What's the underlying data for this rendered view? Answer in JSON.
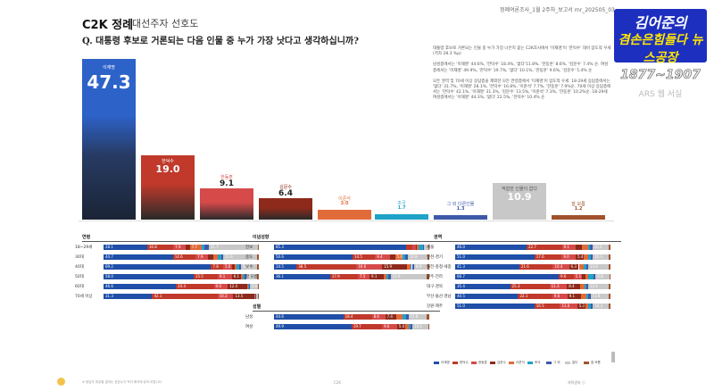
{
  "header": {
    "brand": "C2K 정례",
    "subtitle": "대선주자 선호도",
    "question": "Q. 대통령 후보로 거론되는 다음 인물 중 누가 가장 낫다고 생각하십니까?",
    "report_id": "정례여론조사_1월 2주차_보고서     rnr_202505_03"
  },
  "badge": {
    "line1": "김어준의",
    "line2": "겸손은힘들다 뉴스공장",
    "years": "1877~1907",
    "sub": "ARS 웹 서실"
  },
  "colors": {
    "lee": "#1f4fa8",
    "han_dc": "#c0392b",
    "han_dh": "#d64a4a",
    "kim": "#8e2a1c",
    "lee2": "#e26b3a",
    "cho": "#1fa3c9",
    "other": "#3d5aa8",
    "none": "#b9b9b9",
    "dk": "#a0522d"
  },
  "chart_data": {
    "type": "bar",
    "categories": [
      "이재명",
      "한덕수",
      "한동훈",
      "김문수",
      "이준석",
      "조국",
      "그 외 다른인물",
      "적합한 인물이 없다",
      "잘 모름"
    ],
    "values": [
      47.3,
      19.0,
      9.1,
      6.4,
      3.0,
      1.7,
      1.3,
      10.9,
      1.2
    ],
    "ylim": [
      0,
      50
    ]
  },
  "summary": [
    "대통령 후보로 거론되는 인물 중 누가 가장 나은지 묻는 C2K조사에서 '이재명'이 '한덕수' 대비 압도적 우세(격차 28.3 %p)",
    "남성층에서는 '이재명' 44.6%, '한덕수' 18.4%, '없다'11.8%, '한동훈' 8.6%, '김문수' 7.4% 순. 여성층에서는 '이재명' 49.9%, '한덕수' 19.7%, '없다' 10.1%, '한동훈' 9.6%, '김문수' 5.4% 순",
    "모든 권역 및 70세 이상 응답층을 제외한 모든 연령층에서 '이재명'이 압도적 우세. 18-29세 응답층에서는 '없다' 31.7%, '이재명' 28.1%, '한덕수' 16.8%, '이준석' 7.7%, '한동훈' 7.9%순. 70세 이상 응답층에서는 '한덕수' 42.1%, '이재명' 31.3%, '김문수' 13.5%, '이준석' 7.3%, '한동훈' 10.2%순. 18-29세 여성층에서는 '이재명' 44.3%, '없다' 22.5%, '한덕수' 10.4% 순"
  ],
  "sections": {
    "age": {
      "title": "연령",
      "rows": [
        {
          "label": "18~29세",
          "values": [
            28.1,
            16.8,
            7.9,
            2.7,
            7.7,
            1.5,
            3.0,
            31.7,
            0.6
          ]
        },
        {
          "label": "30대",
          "values": [
            44.7,
            14.6,
            7.9,
            3.6,
            2.6,
            2.5,
            1.0,
            21.9,
            1.2
          ]
        },
        {
          "label": "40대",
          "values": [
            69.2,
            7.8,
            5.6,
            2.1,
            1.2,
            1.5,
            0.9,
            10.4,
            1.3
          ]
        },
        {
          "label": "50대",
          "values": [
            58.0,
            15.5,
            9.1,
            6.1,
            1.0,
            1.2,
            1.0,
            7.1,
            1.0
          ]
        },
        {
          "label": "60대",
          "values": [
            46.6,
            24.4,
            9.0,
            12.4,
            0.8,
            0.5,
            0.6,
            5.0,
            0.7
          ]
        },
        {
          "label": "70세 이상",
          "values": [
            31.3,
            42.1,
            10.2,
            13.5,
            0.5,
            0.3,
            0.2,
            1.5,
            0.4
          ]
        }
      ]
    },
    "ideology": {
      "title": "이념성향",
      "rows": [
        {
          "label": "진보",
          "values": [
            85.3,
            4.0,
            2.1,
            0.8,
            1.0,
            2.6,
            0.5,
            3.0,
            0.7
          ]
        },
        {
          "label": "중도",
          "values": [
            50.6,
            14.5,
            9.4,
            3.4,
            5.0,
            1.7,
            1.5,
            12.8,
            1.1
          ]
        },
        {
          "label": "보수",
          "values": [
            14.5,
            38.5,
            16.6,
            15.9,
            2.7,
            0.6,
            1.4,
            8.9,
            0.9
          ]
        },
        {
          "label": "잘 모름",
          "values": [
            36.1,
            17.9,
            7.5,
            9.1,
            2.0,
            1.0,
            1.5,
            22.9,
            2.0
          ]
        }
      ]
    },
    "gender": {
      "title": "성별",
      "rows": [
        {
          "label": "남성",
          "values": [
            44.6,
            18.4,
            8.6,
            7.4,
            4.0,
            1.8,
            1.7,
            11.8,
            1.7
          ]
        },
        {
          "label": "여성",
          "values": [
            49.9,
            19.7,
            9.6,
            5.4,
            2.0,
            1.6,
            0.9,
            10.1,
            0.8
          ]
        }
      ]
    },
    "region": {
      "title": "권역",
      "rows": [
        {
          "label": "서울",
          "values": [
            46.0,
            22.7,
            9.1,
            3.6,
            4.2,
            1.4,
            1.3,
            10.5,
            1.2
          ]
        },
        {
          "label": "인천·경기",
          "values": [
            51.0,
            17.6,
            9.0,
            5.4,
            2.5,
            1.8,
            1.2,
            10.3,
            1.2
          ]
        },
        {
          "label": "대전·충청·세종",
          "values": [
            41.3,
            21.6,
            10.4,
            6.3,
            3.1,
            1.5,
            1.4,
            13.0,
            1.4
          ]
        },
        {
          "label": "광주·전라",
          "values": [
            66.7,
            9.6,
            5.1,
            2.3,
            2.0,
            3.4,
            1.3,
            8.8,
            0.8
          ]
        },
        {
          "label": "대구·경북",
          "values": [
            35.4,
            25.3,
            11.3,
            8.4,
            3.1,
            1.0,
            1.0,
            13.4,
            1.1
          ]
        },
        {
          "label": "부산·울산·경남",
          "values": [
            40.5,
            22.1,
            9.6,
            9.1,
            3.0,
            1.2,
            1.6,
            11.8,
            1.1
          ]
        },
        {
          "label": "강원·제주",
          "values": [
            51.0,
            16.5,
            11.0,
            5.3,
            2.1,
            1.5,
            1.3,
            10.1,
            1.2
          ]
        }
      ]
    }
  },
  "legend": [
    "이재명",
    "한덕수",
    "한동훈",
    "김문수",
    "이준석",
    "조국",
    "그 외",
    "없다",
    "잘 모름"
  ],
  "footer": {
    "text": "※ 응답자 특성별 결과는 표본수가 적어 해석에 유의 바랍니다",
    "page": "C2K",
    "copyright": "저작권자 ⓒ"
  }
}
